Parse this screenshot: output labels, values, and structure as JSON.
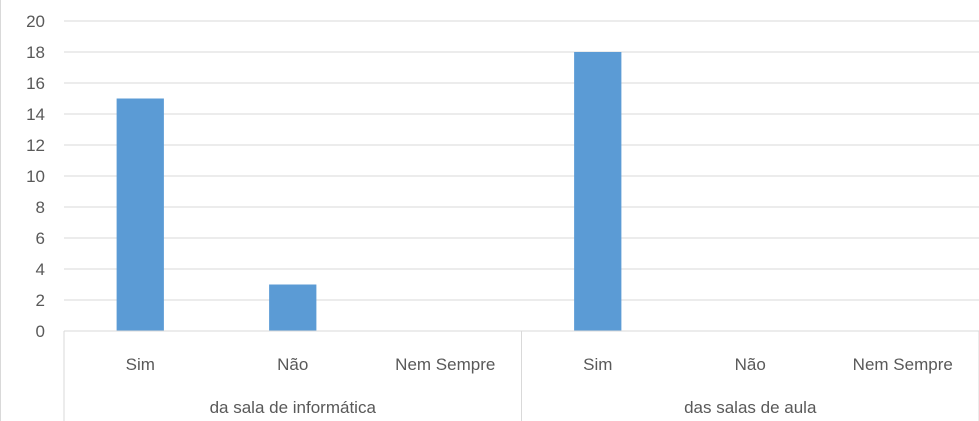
{
  "chart_data": {
    "type": "bar",
    "title": "",
    "xlabel": "",
    "ylabel": "",
    "ylim": [
      0,
      20
    ],
    "ytick_step": 2,
    "grid": true,
    "legend": "none",
    "bar_color": "#5b9bd5",
    "groups": [
      {
        "name": "da sala de informática",
        "categories": [
          "Sim",
          "Não",
          "Nem Sempre"
        ],
        "values": [
          15,
          3,
          0
        ]
      },
      {
        "name": "das  salas de aula",
        "categories": [
          "Sim",
          "Não",
          "Nem Sempre"
        ],
        "values": [
          18,
          0,
          0
        ]
      }
    ]
  }
}
